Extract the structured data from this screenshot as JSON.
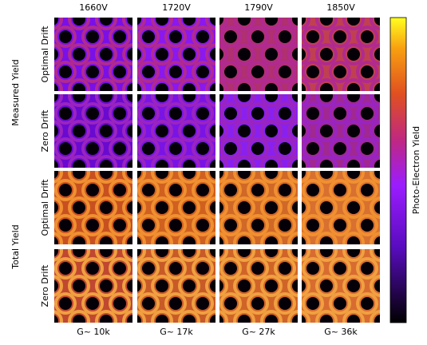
{
  "figure": {
    "columns": [
      "1660V",
      "1720V",
      "1790V",
      "1850V"
    ],
    "gains": [
      "G~ 10k",
      "G~ 17k",
      "G~ 27k",
      "G~ 36k"
    ],
    "row_groups": [
      {
        "label": "Measured Yield",
        "rows": [
          "Optimal Drift",
          "Zero Drift"
        ]
      },
      {
        "label": "Total Yield",
        "rows": [
          "Optimal Drift",
          "Zero Drift"
        ]
      }
    ],
    "colorbar_label": "Photo-Electron Yield"
  }
}
